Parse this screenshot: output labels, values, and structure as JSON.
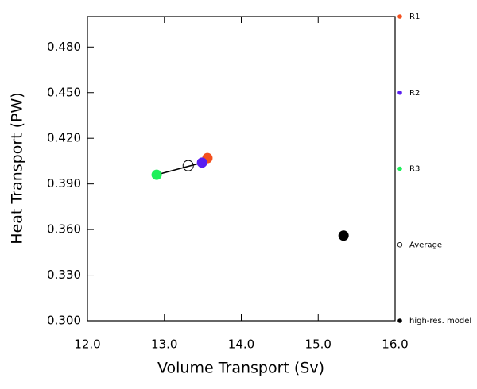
{
  "chart_data": {
    "type": "scatter",
    "x_label": "Volume Transport (Sv)",
    "y_label": "Heat Transport (PW)",
    "xlim": [
      12,
      16
    ],
    "ylim": [
      0.3,
      0.5
    ],
    "xticks": [
      {
        "value": 12,
        "label": "12.0"
      },
      {
        "value": 13,
        "label": "13.0"
      },
      {
        "value": 14,
        "label": "14.0"
      },
      {
        "value": 15,
        "label": "15.0"
      },
      {
        "value": 16,
        "label": "16.0"
      }
    ],
    "yticks": [
      {
        "value": 0.3,
        "label": "0.300"
      },
      {
        "value": 0.33,
        "label": "0.330"
      },
      {
        "value": 0.36,
        "label": "0.360"
      },
      {
        "value": 0.39,
        "label": "0.390"
      },
      {
        "value": 0.42,
        "label": "0.420"
      },
      {
        "value": 0.45,
        "label": "0.450"
      },
      {
        "value": 0.48,
        "label": "0.480"
      }
    ],
    "series": [
      {
        "name": "R1",
        "color": "#f4501e",
        "filled": true,
        "x": [
          13.56
        ],
        "values": [
          0.407
        ]
      },
      {
        "name": "R2",
        "color": "#5a1ef0",
        "filled": true,
        "x": [
          13.49
        ],
        "values": [
          0.404
        ]
      },
      {
        "name": "R3",
        "color": "#1ef05a",
        "filled": true,
        "x": [
          12.9
        ],
        "values": [
          0.396
        ]
      },
      {
        "name": "Average",
        "color": "#000000",
        "filled": false,
        "x": [
          13.31
        ],
        "values": [
          0.402
        ]
      },
      {
        "name": "high-res. model",
        "color": "#000000",
        "filled": true,
        "x": [
          15.33
        ],
        "values": [
          0.356
        ]
      }
    ],
    "connect": [
      2,
      1
    ]
  }
}
